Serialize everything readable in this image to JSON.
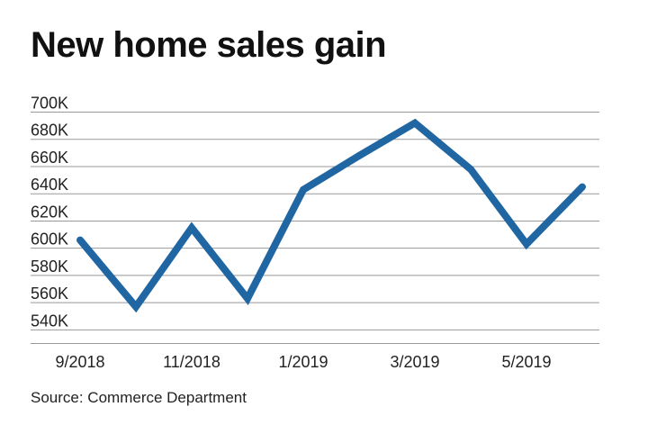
{
  "title": "New home sales gain",
  "source": "Source: Commerce Department",
  "chart_data": {
    "type": "line",
    "title": "New home sales gain",
    "xlabel": "",
    "ylabel": "",
    "x": [
      "9/2018",
      "10/2018",
      "11/2018",
      "12/2018",
      "1/2019",
      "2/2019",
      "3/2019",
      "4/2019",
      "5/2019",
      "6/2019"
    ],
    "x_tick_labels": [
      "9/2018",
      "11/2018",
      "1/2019",
      "3/2019",
      "5/2019"
    ],
    "y_tick_labels": [
      "540K",
      "560K",
      "580K",
      "600K",
      "620K",
      "640K",
      "660K",
      "680K",
      "700K"
    ],
    "ylim": [
      530,
      700
    ],
    "series": [
      {
        "values": [
          606,
          557,
          615,
          563,
          643,
          668,
          692,
          658,
          603,
          645
        ]
      }
    ],
    "grid": "horizontal",
    "line_color": "#1f66a3",
    "grid_color": "#999999"
  }
}
